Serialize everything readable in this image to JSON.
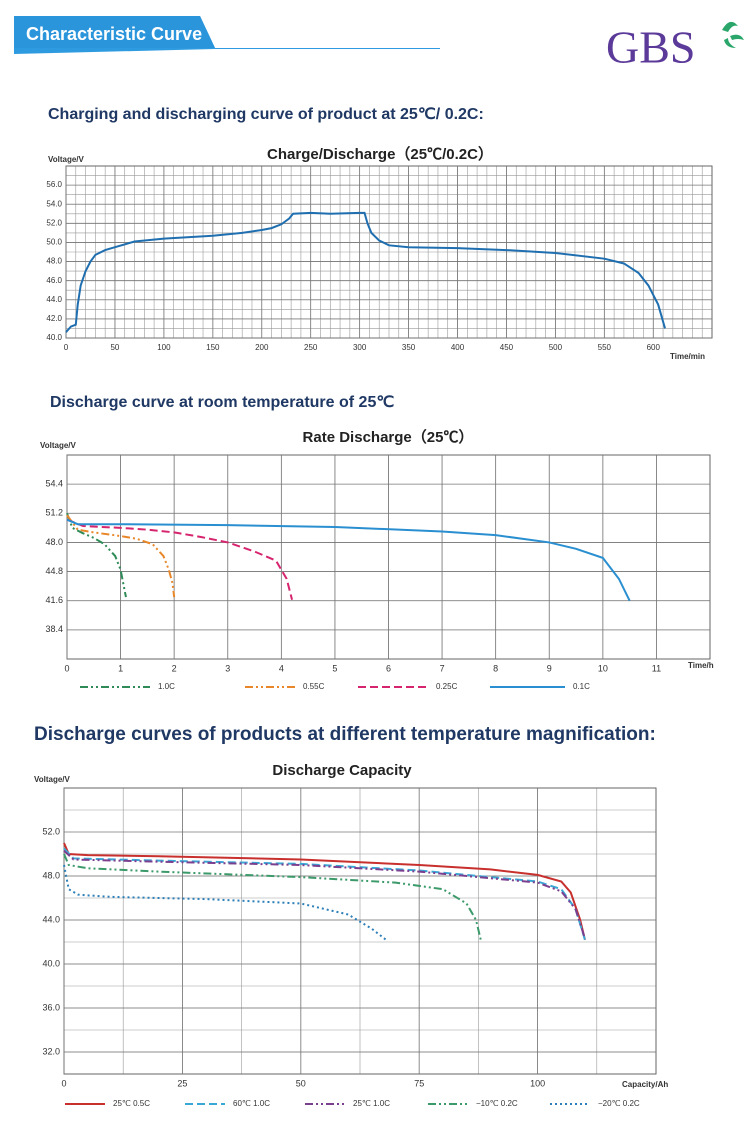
{
  "header": {
    "title": "Characteristic Curve",
    "logo": "GBS"
  },
  "headings": [
    "Charging and discharging curve of product at 25℃/ 0.2C:",
    "Discharge curve at room temperature of 25℃",
    "Discharge curves of products at different temperature magnification:"
  ],
  "chart_data": [
    {
      "type": "line",
      "title": "Charge/Discharge（25℃/0.2C）",
      "y_label": "Voltage/V",
      "x_label": "Time/min",
      "xlim": [
        0,
        660
      ],
      "xticks": [
        0,
        50,
        100,
        150,
        200,
        250,
        300,
        350,
        400,
        450,
        500,
        550,
        600
      ],
      "ylim": [
        40,
        58
      ],
      "yticks": [
        {
          "value": 40,
          "label": "40.0"
        },
        {
          "value": 42,
          "label": "42.0"
        },
        {
          "value": 44,
          "label": "44.0"
        },
        {
          "value": 46,
          "label": "46.0"
        },
        {
          "value": 48,
          "label": "48.0"
        },
        {
          "value": 50,
          "label": "50.0"
        },
        {
          "value": 52,
          "label": "52.0"
        },
        {
          "value": 54,
          "label": "54.0"
        },
        {
          "value": 56,
          "label": "56.0"
        }
      ],
      "grid": true,
      "x": [
        0,
        5,
        10,
        12,
        15,
        20,
        25,
        30,
        40,
        50,
        70,
        100,
        150,
        180,
        200,
        210,
        220,
        228,
        232,
        250,
        270,
        300,
        305,
        308,
        312,
        320,
        330,
        350,
        400,
        450,
        500,
        550,
        570,
        585,
        595,
        605,
        612
      ],
      "series": [
        {
          "color": "#1f6fb0",
          "dash": "solid",
          "values": [
            40.6,
            41.2,
            41.4,
            43.5,
            45.5,
            47,
            48,
            48.7,
            49.2,
            49.5,
            50.1,
            50.4,
            50.7,
            51,
            51.3,
            51.5,
            51.9,
            52.5,
            53,
            53.1,
            53,
            53.1,
            53.1,
            52,
            51,
            50.2,
            49.7,
            49.5,
            49.4,
            49.2,
            48.9,
            48.3,
            47.8,
            46.8,
            45.5,
            43.5,
            41
          ]
        }
      ]
    },
    {
      "type": "line",
      "title": "Rate Discharge（25℃）",
      "y_label": "Voltage/V",
      "x_label": "Time/h",
      "xlim": [
        0,
        12
      ],
      "xticks": [
        0,
        1,
        2,
        3,
        4,
        5,
        6,
        7,
        8,
        9,
        10,
        11
      ],
      "ylim": [
        35.2,
        57.6
      ],
      "yticks": [
        38.4,
        41.6,
        44.8,
        {
          "value": 48,
          "label": "48.0"
        },
        51.2,
        54.4
      ],
      "grid": true,
      "series": [
        {
          "name": "1.0C",
          "color": "#2e8b57",
          "dash": "dashdot",
          "x": [
            0,
            0.1,
            0.3,
            0.5,
            0.7,
            0.9,
            1.0,
            1.05,
            1.1
          ],
          "values": [
            51.2,
            49.6,
            49.0,
            48.5,
            47.8,
            46.5,
            45,
            43.5,
            42
          ]
        },
        {
          "name": "0.55C",
          "color": "#e8872a",
          "dash": "dashdot",
          "x": [
            0,
            0.2,
            0.5,
            1,
            1.3,
            1.6,
            1.8,
            1.9,
            1.97,
            2.0
          ],
          "values": [
            51,
            49.4,
            49.1,
            48.7,
            48.4,
            47.8,
            46.5,
            45,
            43.5,
            42
          ]
        },
        {
          "name": "0.25C",
          "color": "#d6246e",
          "dash": "dash",
          "x": [
            0,
            0.3,
            1,
            1.5,
            2,
            2.5,
            3,
            3.5,
            3.9,
            4.1,
            4.2
          ],
          "values": [
            50.5,
            49.8,
            49.6,
            49.4,
            49.1,
            48.6,
            48.0,
            47.0,
            46.0,
            44,
            41.7
          ]
        },
        {
          "name": "0.1C",
          "color": "#2a8fd0",
          "dash": "solid",
          "x": [
            0,
            0.2,
            1,
            3,
            5,
            7,
            8,
            9,
            9.5,
            10,
            10.3,
            10.5
          ],
          "values": [
            50.5,
            50,
            50,
            49.9,
            49.7,
            49.2,
            48.8,
            48.0,
            47.3,
            46.3,
            44,
            41.6
          ]
        }
      ]
    },
    {
      "type": "line",
      "title": "Discharge Capacity",
      "y_label": "Voltage/V",
      "x_label": "Capacity/Ah",
      "xlim": [
        0,
        125
      ],
      "xticks": [
        0,
        25,
        50,
        75,
        100
      ],
      "ylim": [
        30,
        56
      ],
      "yticks": [
        {
          "value": 32,
          "label": "32.0"
        },
        {
          "value": 36,
          "label": "36.0"
        },
        {
          "value": 40,
          "label": "40.0"
        },
        {
          "value": 44,
          "label": "44.0"
        },
        {
          "value": 48,
          "label": "48.0"
        },
        {
          "value": 52,
          "label": "52.0"
        }
      ],
      "grid": true,
      "series": [
        {
          "name": "25℃ 0.5C",
          "color": "#c8302e",
          "dash": "solid",
          "x": [
            0,
            1,
            5,
            20,
            50,
            75,
            90,
            100,
            105,
            107,
            109,
            110
          ],
          "values": [
            51,
            50,
            49.9,
            49.8,
            49.5,
            49,
            48.6,
            48.1,
            47.5,
            46.5,
            44,
            42.2
          ]
        },
        {
          "name": "60℃ 1.0C",
          "color": "#3ba7d6",
          "dash": "dash",
          "x": [
            0,
            2,
            20,
            50,
            75,
            100,
            105,
            108,
            110
          ],
          "values": [
            50.5,
            49.6,
            49.4,
            49.1,
            48.5,
            47.5,
            46.8,
            45,
            42.2
          ]
        },
        {
          "name": "25℃ 1.0C",
          "color": "#7b3f8f",
          "dash": "dashdot",
          "x": [
            0,
            2,
            20,
            50,
            75,
            100,
            105,
            108,
            110
          ],
          "values": [
            50.3,
            49.5,
            49.3,
            49.0,
            48.4,
            47.4,
            46.6,
            45,
            42.3
          ]
        },
        {
          "name": "−10℃ 0.2C",
          "color": "#3c9a6a",
          "dash": "dashdot",
          "x": [
            0,
            1,
            5,
            20,
            50,
            70,
            80,
            85,
            87,
            88
          ],
          "values": [
            50,
            49,
            48.7,
            48.4,
            47.9,
            47.4,
            46.8,
            45.5,
            44,
            42.2
          ]
        },
        {
          "name": "−20℃ 0.2C",
          "color": "#2c7fb8",
          "dash": "dot",
          "x": [
            0,
            1,
            3,
            10,
            30,
            50,
            60,
            65,
            68
          ],
          "values": [
            49,
            46.8,
            46.3,
            46.1,
            45.9,
            45.5,
            44.5,
            43.2,
            42.2
          ]
        }
      ]
    }
  ]
}
